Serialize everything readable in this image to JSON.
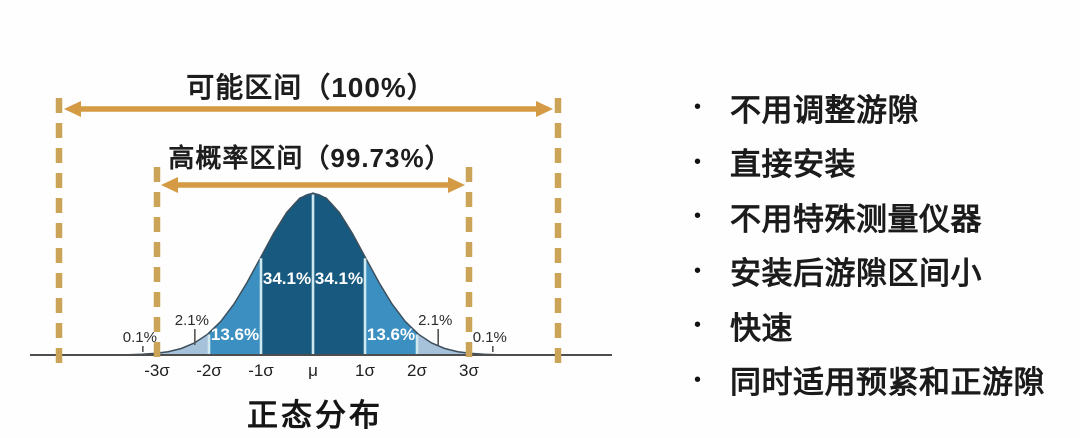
{
  "chart": {
    "title": "正态分布",
    "top_interval_label": "可能区间（100%）",
    "inner_interval_label": "高概率区间（99.73%）"
  },
  "chart_data": {
    "type": "area",
    "distribution": "normal",
    "title": "正态分布",
    "x_tick_labels": [
      "-3σ",
      "-2σ",
      "-1σ",
      "μ",
      "1σ",
      "2σ",
      "3σ"
    ],
    "x_tick_sigma": [
      -3,
      -2,
      -1,
      0,
      1,
      2,
      3
    ],
    "segments": [
      {
        "from_sigma": -4.0,
        "to_sigma": -3.0,
        "percent": 0.1,
        "label": "0.1%",
        "fill": "#b7cbdf",
        "label_placement": "callout",
        "callout_sigma": -3.33
      },
      {
        "from_sigma": -3.0,
        "to_sigma": -2.0,
        "percent": 2.1,
        "label": "2.1%",
        "fill": "#a6c1da",
        "label_placement": "callout",
        "callout_sigma": -2.33
      },
      {
        "from_sigma": -2.0,
        "to_sigma": -1.0,
        "percent": 13.6,
        "label": "13.6%",
        "fill": "#3b90c1",
        "label_placement": "inside-low"
      },
      {
        "from_sigma": -1.0,
        "to_sigma": 0.0,
        "percent": 34.1,
        "label": "34.1%",
        "fill": "#17597f",
        "label_placement": "inside-high"
      },
      {
        "from_sigma": 0.0,
        "to_sigma": 1.0,
        "percent": 34.1,
        "label": "34.1%",
        "fill": "#17597f",
        "label_placement": "inside-high"
      },
      {
        "from_sigma": 1.0,
        "to_sigma": 2.0,
        "percent": 13.6,
        "label": "13.6%",
        "fill": "#3b90c1",
        "label_placement": "inside-low"
      },
      {
        "from_sigma": 2.0,
        "to_sigma": 3.0,
        "percent": 2.1,
        "label": "2.1%",
        "fill": "#a6c1da",
        "label_placement": "callout",
        "callout_sigma": 2.35
      },
      {
        "from_sigma": 3.0,
        "to_sigma": 4.0,
        "percent": 0.1,
        "label": "0.1%",
        "fill": "#b7cbdf",
        "label_placement": "callout",
        "callout_sigma": 3.4
      }
    ],
    "annotations": [
      {
        "name": "possible-interval",
        "label": "可能区间（100%）",
        "percent": 100.0,
        "style": "outer-dashed-arrow"
      },
      {
        "name": "high-probability-interval",
        "label": "高概率区间（99.73%）",
        "percent": 99.73,
        "span_sigma": [
          -3,
          3
        ],
        "style": "inner-dashed-arrow"
      }
    ],
    "colors": {
      "annotation_arrow": "#d49a44",
      "annotation_dash": "#cba458",
      "segment_divider": "#cfe7ee",
      "axis": "#4d4d4d",
      "curve_outline": "#3d4f5c",
      "label_dark": "#2b2b2b",
      "label_light": "#ffffff"
    },
    "legend": "none",
    "grid": false
  },
  "benefits": {
    "bullet_char": "•",
    "items": [
      "不用调整游隙",
      "直接安装",
      "不用特殊测量仪器",
      "安装后游隙区间小",
      "快速",
      "同时适用预紧和正游隙"
    ]
  }
}
